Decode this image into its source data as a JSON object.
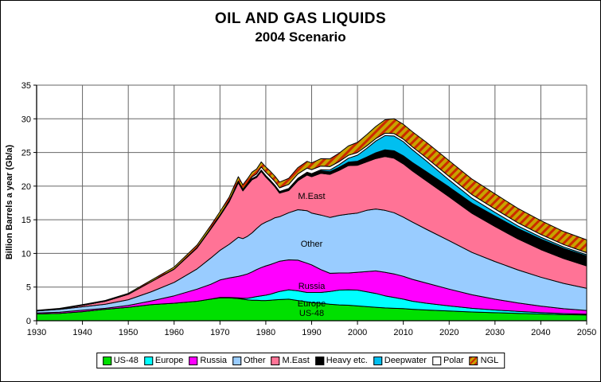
{
  "title": "OIL AND GAS LIQUIDS",
  "subtitle": "2004 Scenario",
  "chart_data": {
    "type": "area",
    "stacked": true,
    "title": "OIL AND GAS LIQUIDS",
    "subtitle": "2004 Scenario",
    "xlabel": "",
    "ylabel": "Billion Barrels a year (Gb/a)",
    "xlim": [
      1930,
      2050
    ],
    "ylim": [
      0,
      35
    ],
    "xticks": [
      1930,
      1940,
      1950,
      1960,
      1970,
      1980,
      1990,
      2000,
      2010,
      2020,
      2030,
      2040,
      2050
    ],
    "yticks": [
      0,
      5,
      10,
      15,
      20,
      25,
      30,
      35
    ],
    "grid": true,
    "grid_color": "#666666",
    "axis_color": "#000000",
    "legend_position": "bottom",
    "x": [
      1930,
      1935,
      1940,
      1945,
      1950,
      1955,
      1960,
      1965,
      1968,
      1970,
      1972,
      1974,
      1975,
      1976,
      1977,
      1978,
      1979,
      1980,
      1981,
      1982,
      1983,
      1985,
      1987,
      1989,
      1990,
      1992,
      1994,
      1996,
      1998,
      2000,
      2002,
      2004,
      2006,
      2008,
      2010,
      2012,
      2015,
      2020,
      2025,
      2030,
      2035,
      2040,
      2045,
      2050
    ],
    "series": [
      {
        "name": "US-48",
        "color": "#00E000",
        "values": [
          1.0,
          1.1,
          1.35,
          1.7,
          2.0,
          2.4,
          2.6,
          2.9,
          3.2,
          3.4,
          3.4,
          3.3,
          3.2,
          3.1,
          3.05,
          3.05,
          3.0,
          3.0,
          3.05,
          3.1,
          3.15,
          3.2,
          3.0,
          2.8,
          2.7,
          2.6,
          2.45,
          2.35,
          2.3,
          2.2,
          2.1,
          2.0,
          1.9,
          1.85,
          1.8,
          1.7,
          1.6,
          1.45,
          1.3,
          1.2,
          1.1,
          1.0,
          0.9,
          0.85
        ]
      },
      {
        "name": "Europe",
        "color": "#00FFFF",
        "values": [
          0,
          0,
          0,
          0,
          0,
          0,
          0,
          0,
          0.02,
          0.05,
          0.05,
          0.1,
          0.15,
          0.25,
          0.4,
          0.55,
          0.7,
          0.8,
          0.9,
          1.05,
          1.2,
          1.4,
          1.45,
          1.4,
          1.5,
          1.6,
          1.9,
          2.2,
          2.3,
          2.35,
          2.2,
          2.05,
          1.8,
          1.6,
          1.4,
          1.2,
          1.0,
          0.75,
          0.55,
          0.4,
          0.3,
          0.22,
          0.17,
          0.13
        ]
      },
      {
        "name": "Russia",
        "color": "#FF00FF",
        "values": [
          0.15,
          0.18,
          0.22,
          0.15,
          0.27,
          0.55,
          1.1,
          1.8,
          2.2,
          2.6,
          2.9,
          3.2,
          3.4,
          3.6,
          3.8,
          4.0,
          4.2,
          4.35,
          4.4,
          4.45,
          4.5,
          4.45,
          4.55,
          4.35,
          4.1,
          3.4,
          2.7,
          2.55,
          2.5,
          2.65,
          3.0,
          3.35,
          3.5,
          3.5,
          3.4,
          3.25,
          3.0,
          2.5,
          2.0,
          1.6,
          1.25,
          0.95,
          0.72,
          0.55
        ]
      },
      {
        "name": "Other",
        "color": "#99CCFF",
        "values": [
          0.3,
          0.4,
          0.5,
          0.6,
          0.85,
          1.35,
          2.0,
          3.0,
          3.9,
          4.4,
          5.0,
          5.8,
          5.45,
          5.6,
          5.8,
          6.1,
          6.4,
          6.5,
          6.6,
          6.7,
          6.6,
          7.0,
          7.5,
          7.8,
          7.7,
          8.1,
          8.3,
          8.55,
          8.75,
          8.8,
          9.1,
          9.2,
          9.2,
          9.1,
          8.8,
          8.5,
          8.0,
          7.2,
          6.3,
          5.6,
          4.9,
          4.3,
          3.75,
          3.3
        ]
      },
      {
        "name": "M.East",
        "color": "#FF7396",
        "values": [
          0.05,
          0.08,
          0.22,
          0.45,
          0.8,
          1.5,
          1.95,
          3.1,
          4.3,
          5.1,
          6.3,
          8.1,
          7.1,
          7.6,
          7.9,
          7.6,
          7.9,
          6.7,
          5.7,
          4.6,
          3.5,
          3.3,
          4.3,
          5.3,
          5.4,
          6.2,
          6.4,
          6.7,
          7.2,
          7.1,
          7.2,
          7.5,
          8.0,
          8.1,
          7.9,
          7.6,
          7.2,
          6.5,
          5.8,
          5.2,
          4.6,
          4.1,
          3.7,
          3.3
        ]
      },
      {
        "name": "Heavy etc.",
        "color": "#000000",
        "values": [
          0,
          0,
          0,
          0,
          0,
          0,
          0.03,
          0.05,
          0.08,
          0.1,
          0.1,
          0.15,
          0.15,
          0.15,
          0.18,
          0.18,
          0.2,
          0.22,
          0.22,
          0.23,
          0.25,
          0.28,
          0.3,
          0.33,
          0.35,
          0.38,
          0.4,
          0.45,
          0.5,
          0.6,
          0.7,
          0.85,
          1.0,
          1.1,
          1.2,
          1.25,
          1.35,
          1.45,
          1.5,
          1.55,
          1.55,
          1.55,
          1.5,
          1.5
        ]
      },
      {
        "name": "Deepwater",
        "color": "#00BFF0",
        "values": [
          0,
          0,
          0,
          0,
          0,
          0,
          0,
          0,
          0,
          0,
          0,
          0,
          0,
          0,
          0,
          0,
          0,
          0,
          0,
          0,
          0,
          0.02,
          0.05,
          0.08,
          0.1,
          0.15,
          0.25,
          0.4,
          0.6,
          0.9,
          1.3,
          1.75,
          2.1,
          2.2,
          2.1,
          1.9,
          1.6,
          1.05,
          0.75,
          0.55,
          0.4,
          0.3,
          0.22,
          0.18
        ]
      },
      {
        "name": "Polar",
        "color": "#FFFFFF",
        "values": [
          0,
          0,
          0,
          0,
          0,
          0,
          0,
          0,
          0,
          0.05,
          0.08,
          0.1,
          0.1,
          0.12,
          0.25,
          0.35,
          0.45,
          0.5,
          0.52,
          0.54,
          0.55,
          0.6,
          0.65,
          0.62,
          0.6,
          0.55,
          0.5,
          0.45,
          0.42,
          0.4,
          0.38,
          0.36,
          0.36,
          0.36,
          0.38,
          0.42,
          0.48,
          0.52,
          0.53,
          0.5,
          0.45,
          0.4,
          0.35,
          0.3
        ]
      },
      {
        "name": "NGL",
        "color": "#C7A300",
        "hatch": true,
        "hatch_color": "#CC2900",
        "values": [
          0.05,
          0.07,
          0.1,
          0.12,
          0.15,
          0.22,
          0.3,
          0.4,
          0.45,
          0.5,
          0.55,
          0.65,
          0.65,
          0.68,
          0.7,
          0.72,
          0.75,
          0.78,
          0.8,
          0.82,
          0.85,
          0.9,
          0.95,
          1.0,
          1.0,
          1.1,
          1.15,
          1.25,
          1.4,
          1.5,
          1.65,
          1.8,
          2.0,
          2.2,
          2.2,
          2.25,
          2.3,
          2.35,
          2.3,
          2.25,
          2.15,
          2.05,
          1.95,
          1.9
        ]
      }
    ],
    "area_labels": [
      {
        "text": "M.East",
        "year": 1990,
        "value": 18.45
      },
      {
        "text": "Other",
        "year": 1990,
        "value": 11.35
      },
      {
        "text": "Russia",
        "year": 1990,
        "value": 5.1
      },
      {
        "text": "Europe",
        "year": 1990,
        "value": 2.5
      },
      {
        "text": "US-48",
        "year": 1990,
        "value": 1.1
      }
    ],
    "legend": [
      "US-48",
      "Europe",
      "Russia",
      "Other",
      "M.East",
      "Heavy etc.",
      "Deepwater",
      "Polar",
      "NGL"
    ]
  }
}
